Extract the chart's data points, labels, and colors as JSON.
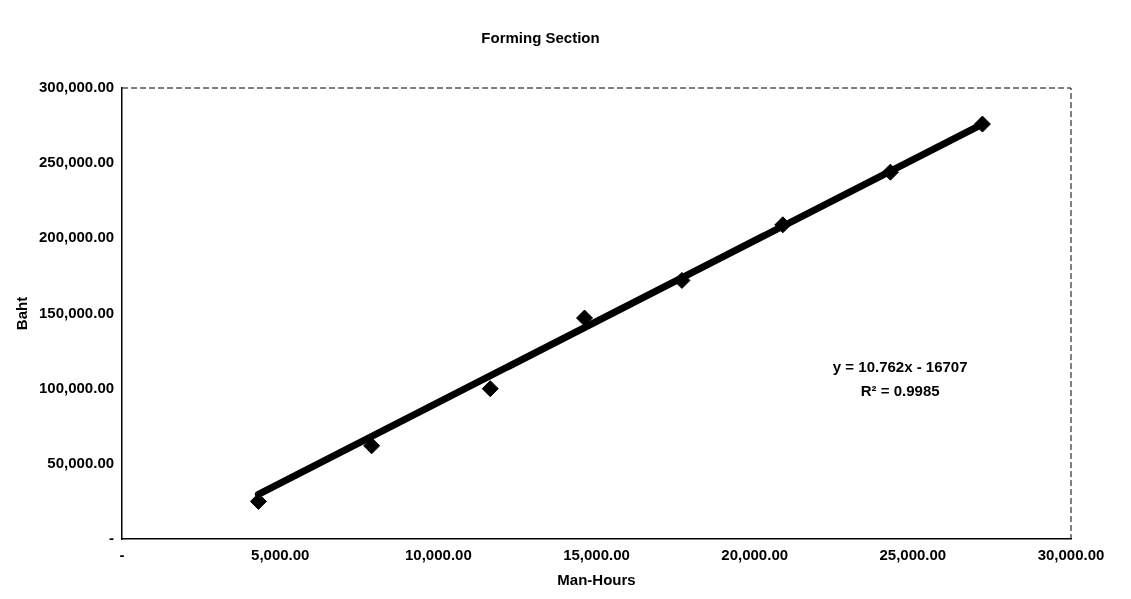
{
  "chart_data": {
    "type": "scatter",
    "title": "Forming Section",
    "xlabel": "Man-Hours",
    "ylabel": "Baht",
    "xlim": [
      0,
      30000
    ],
    "xticks": [
      {
        "value": 0,
        "label": "-"
      },
      {
        "value": 5000,
        "label": "5,000.00"
      },
      {
        "value": 10000,
        "label": "10,000.00"
      },
      {
        "value": 15000,
        "label": "15,000.00"
      },
      {
        "value": 20000,
        "label": "20,000.00"
      },
      {
        "value": 25000,
        "label": "25,000.00"
      },
      {
        "value": 30000,
        "label": "30,000.00"
      }
    ],
    "ylim": [
      0,
      300000
    ],
    "yticks": [
      {
        "value": 0,
        "label": "-"
      },
      {
        "value": 50000,
        "label": "50,000.00"
      },
      {
        "value": 100000,
        "label": "100,000.00"
      },
      {
        "value": 150000,
        "label": "150,000.00"
      },
      {
        "value": 200000,
        "label": "200,000.00"
      },
      {
        "value": 250000,
        "label": "250,000.00"
      },
      {
        "value": 300000,
        "label": "300,000.00"
      }
    ],
    "grid": false,
    "legend": false,
    "marker": "diamond",
    "series": [
      {
        "color": "#000000",
        "x": [
          4310,
          7890,
          11640,
          14620,
          17700,
          20890,
          24290,
          27200
        ],
        "values": [
          25000,
          62000,
          100000,
          147000,
          172000,
          209000,
          244000,
          276000
        ]
      },
      {
        "type": "line",
        "color": "#000000",
        "marker": "none",
        "x": [
          4310,
          27200
        ],
        "values": [
          29700,
          276000
        ]
      }
    ],
    "annotations": [
      "y = 10.762x - 16707",
      "R² = 0.9985"
    ]
  }
}
